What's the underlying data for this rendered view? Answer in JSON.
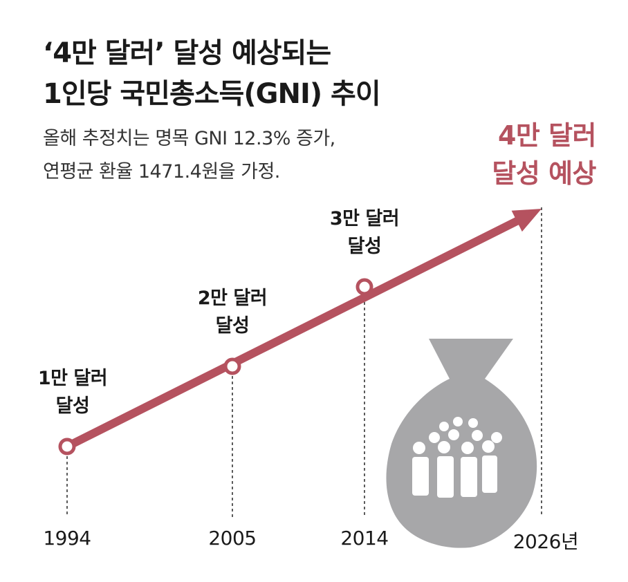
{
  "header": {
    "title_line1": "‘4만 달러’ 달성 예상되는",
    "title_line2": "1인당 국민총소득(GNI) 추이",
    "subtitle_line1": "올해 추정치는 명목 GNI 12.3% 증가,",
    "subtitle_line2": "연평균 환율 1471.4원을 가정."
  },
  "goal": {
    "line1": "4만 달러",
    "line2": "달성 예상"
  },
  "chart_data": {
    "type": "line",
    "title": "‘4만 달러’ 달성 예상되는 1인당 국민총소득(GNI) 추이",
    "x": [
      "1994",
      "2005",
      "2014",
      "2026년"
    ],
    "points": [
      {
        "year": "1994",
        "value": 10000,
        "label_line1": "1만 달러",
        "label_line2": "달성"
      },
      {
        "year": "2005",
        "value": 20000,
        "label_line1": "2만 달러",
        "label_line2": "달성"
      },
      {
        "year": "2014",
        "value": 30000,
        "label_line1": "3만 달러",
        "label_line2": "달성"
      },
      {
        "year": "2026년",
        "value": 40000,
        "label_line1": "4만 달러",
        "label_line2": "달성 예상"
      }
    ],
    "accent_color": "#b5525f",
    "illustration_color": "#a7a7a9",
    "illustration": "money-bag-with-people-icon"
  }
}
